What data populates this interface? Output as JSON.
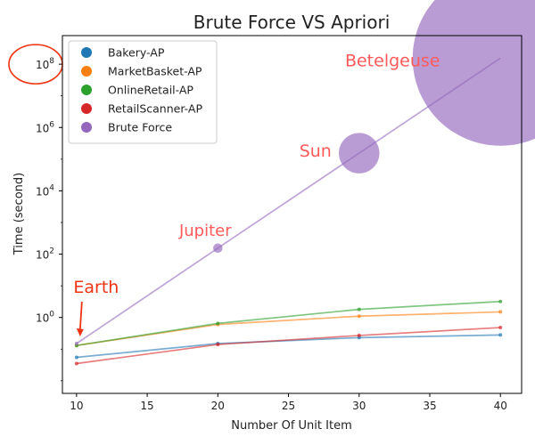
{
  "chart_data": {
    "type": "line",
    "title": "Brute Force VS Apriori",
    "xlabel": "Number Of Unit Item",
    "ylabel": "Time (second)",
    "yscale": "log",
    "xlim": [
      9.0,
      41.5
    ],
    "ylim": [
      0.004,
      800000000
    ],
    "x_ticks": [
      10,
      15,
      20,
      25,
      30,
      35,
      40
    ],
    "y_ticks": [
      1,
      100,
      10000,
      1000000,
      100000000
    ],
    "y_tick_labels": [
      {
        "base": "10",
        "exp": "0"
      },
      {
        "base": "10",
        "exp": "2"
      },
      {
        "base": "10",
        "exp": "4"
      },
      {
        "base": "10",
        "exp": "6"
      },
      {
        "base": "10",
        "exp": "8"
      }
    ],
    "grid": false,
    "legend_position": "top-left",
    "x": [
      10,
      20,
      30,
      40
    ],
    "series": [
      {
        "name": "Bakery-AP",
        "color": "#1f77b4",
        "values": [
          0.055,
          0.15,
          0.23,
          0.28
        ]
      },
      {
        "name": "MarketBasket-AP",
        "color": "#ff7f0e",
        "values": [
          0.13,
          0.6,
          1.1,
          1.5
        ]
      },
      {
        "name": "OnlineRetail-AP",
        "color": "#2ca02c",
        "values": [
          0.13,
          0.65,
          1.8,
          3.2
        ]
      },
      {
        "name": "RetailScanner-AP",
        "color": "#d62728",
        "values": [
          0.035,
          0.14,
          0.27,
          0.48
        ]
      },
      {
        "name": "Brute Force",
        "color": "#9467bd",
        "values": [
          0.15,
          155,
          155000,
          155000000
        ]
      }
    ],
    "annotations": [
      {
        "text": "Earth",
        "color": "#ee3311",
        "x": 10,
        "y": 0.15
      },
      {
        "text": "Jupiter",
        "color": "#ff5a5a",
        "x": 20,
        "y": 155
      },
      {
        "text": "Sun",
        "color": "#ff5a5a",
        "x": 30,
        "y": 155000
      },
      {
        "text": "Betelgeuse",
        "color": "#ff5a5a",
        "x": 40,
        "y": 155000000
      }
    ],
    "highlight_color": "#ee3311",
    "bubble_color": "#9467bd"
  }
}
